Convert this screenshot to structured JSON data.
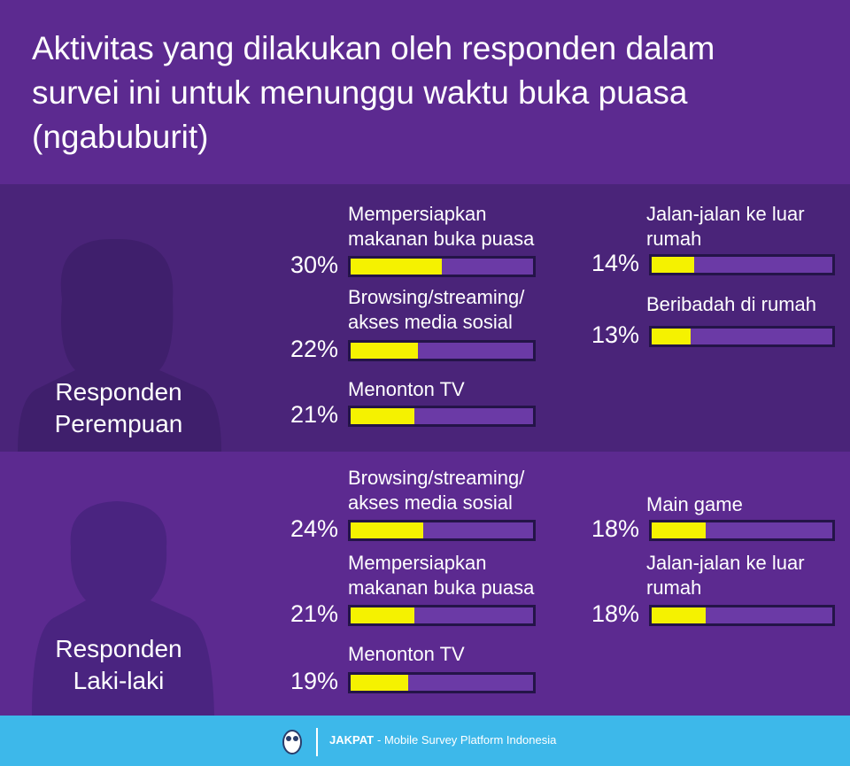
{
  "title": "Aktivitas yang dilakukan oleh responden dalam survei ini untuk menunggu waktu buka puasa (ngabuburit)",
  "chart_data": [
    {
      "type": "bar",
      "title": "Responden Perempuan",
      "categories": [
        "Mempersiapkan makanan buka puasa",
        "Browsing/streaming/ akses media sosial",
        "Menonton TV",
        "Jalan-jalan ke luar rumah",
        "Beribadah di rumah"
      ],
      "values": [
        30,
        22,
        21,
        14,
        13
      ],
      "value_labels": [
        "30%",
        "22%",
        "21%",
        "14%",
        "13%"
      ],
      "color": "#f5f200",
      "xlim": [
        0,
        60
      ]
    },
    {
      "type": "bar",
      "title": "Responden Laki-laki",
      "categories": [
        "Browsing/streaming/ akses media sosial",
        "Mempersiapkan makanan buka puasa",
        "Menonton TV",
        "Main game",
        "Jalan-jalan ke luar rumah"
      ],
      "values": [
        24,
        21,
        19,
        18,
        18
      ],
      "value_labels": [
        "24%",
        "21%",
        "19%",
        "18%",
        "18%"
      ],
      "color": "#f5f200",
      "xlim": [
        0,
        60
      ]
    }
  ],
  "footer": {
    "brand": "JAKPAT",
    "tagline": "- Mobile Survey Platform Indonesia"
  }
}
